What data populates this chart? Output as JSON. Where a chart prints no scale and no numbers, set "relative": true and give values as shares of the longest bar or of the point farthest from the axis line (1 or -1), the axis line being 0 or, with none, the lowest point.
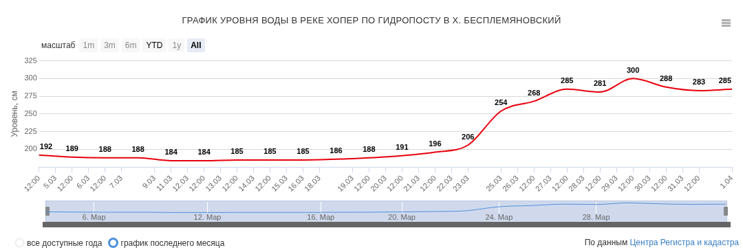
{
  "chart_data": [
    {
      "type": "line",
      "title": "ГРАФИК УРОВНЯ ВОДЫ В РЕКЕ ХОПЕР ПО ГИДРОПОСТУ В Х. БЕСПЛЕМЯНОВСКИЙ",
      "ylabel": "Уровень, см",
      "categories": [
        "12:00",
        "5.03",
        "12:00",
        "6.03",
        "12:00",
        "7.03",
        null,
        "9.03",
        "11.03",
        "12.03",
        "12:00",
        "13.03",
        "12:00",
        "14.03",
        "12:00",
        "15.03",
        "16.03",
        "18.03",
        null,
        "19.03",
        "12:00",
        "20.03",
        "12:00",
        "21.03",
        "12:00",
        "22.03",
        "23.03",
        null,
        "25.03",
        "26.03",
        "12:00",
        "27.03",
        "12:00",
        "28.03",
        "12:00",
        "29.03",
        "12:00",
        "30.03",
        "12:00",
        "31.03",
        "12:00",
        null,
        "1.04"
      ],
      "values": [
        192,
        null,
        189,
        null,
        188,
        null,
        188,
        null,
        184,
        null,
        184,
        null,
        185,
        null,
        185,
        null,
        185,
        null,
        186,
        null,
        188,
        null,
        191,
        null,
        196,
        null,
        206,
        null,
        254,
        null,
        268,
        null,
        285,
        null,
        281,
        null,
        300,
        null,
        288,
        null,
        283,
        null,
        285
      ],
      "color": "#e8000b",
      "ylim": [
        175,
        325
      ],
      "yticks": [
        200,
        225,
        250,
        275,
        300,
        325
      ],
      "grid": "y",
      "data_labels": true,
      "annotations": [
        "масштаб",
        "1m",
        "3m",
        "6m",
        "YTD",
        "1y",
        "All",
        "все доступные года",
        "график последнего месяца",
        "По данным",
        "Центра Регистра и кадастра"
      ]
    },
    {
      "type": "line",
      "relative": true,
      "categories": [
        null,
        null,
        null,
        "6. Мар",
        null,
        null,
        null,
        null,
        null,
        null,
        "12. Мар",
        null,
        null,
        null,
        null,
        null,
        null,
        "16. Мар",
        null,
        null,
        null,
        null,
        "20. Мар",
        null,
        null,
        null,
        null,
        null,
        "24. Мар",
        null,
        null,
        null,
        null,
        null,
        "28. Мар",
        null,
        null,
        null,
        null,
        null,
        null,
        null,
        null
      ],
      "values": [
        0.07,
        null,
        0.04,
        null,
        0.03,
        null,
        0.03,
        null,
        0,
        null,
        0,
        null,
        0.01,
        null,
        0.01,
        null,
        0.01,
        null,
        0.02,
        null,
        0.03,
        null,
        0.06,
        null,
        0.1,
        null,
        0.19,
        null,
        0.6,
        null,
        0.72,
        null,
        0.87,
        null,
        0.84,
        null,
        1,
        null,
        0.9,
        null,
        0.85,
        null,
        0.87
      ],
      "color": "#4f8fdc",
      "tick_labels": "x",
      "grid": "x"
    }
  ]
}
